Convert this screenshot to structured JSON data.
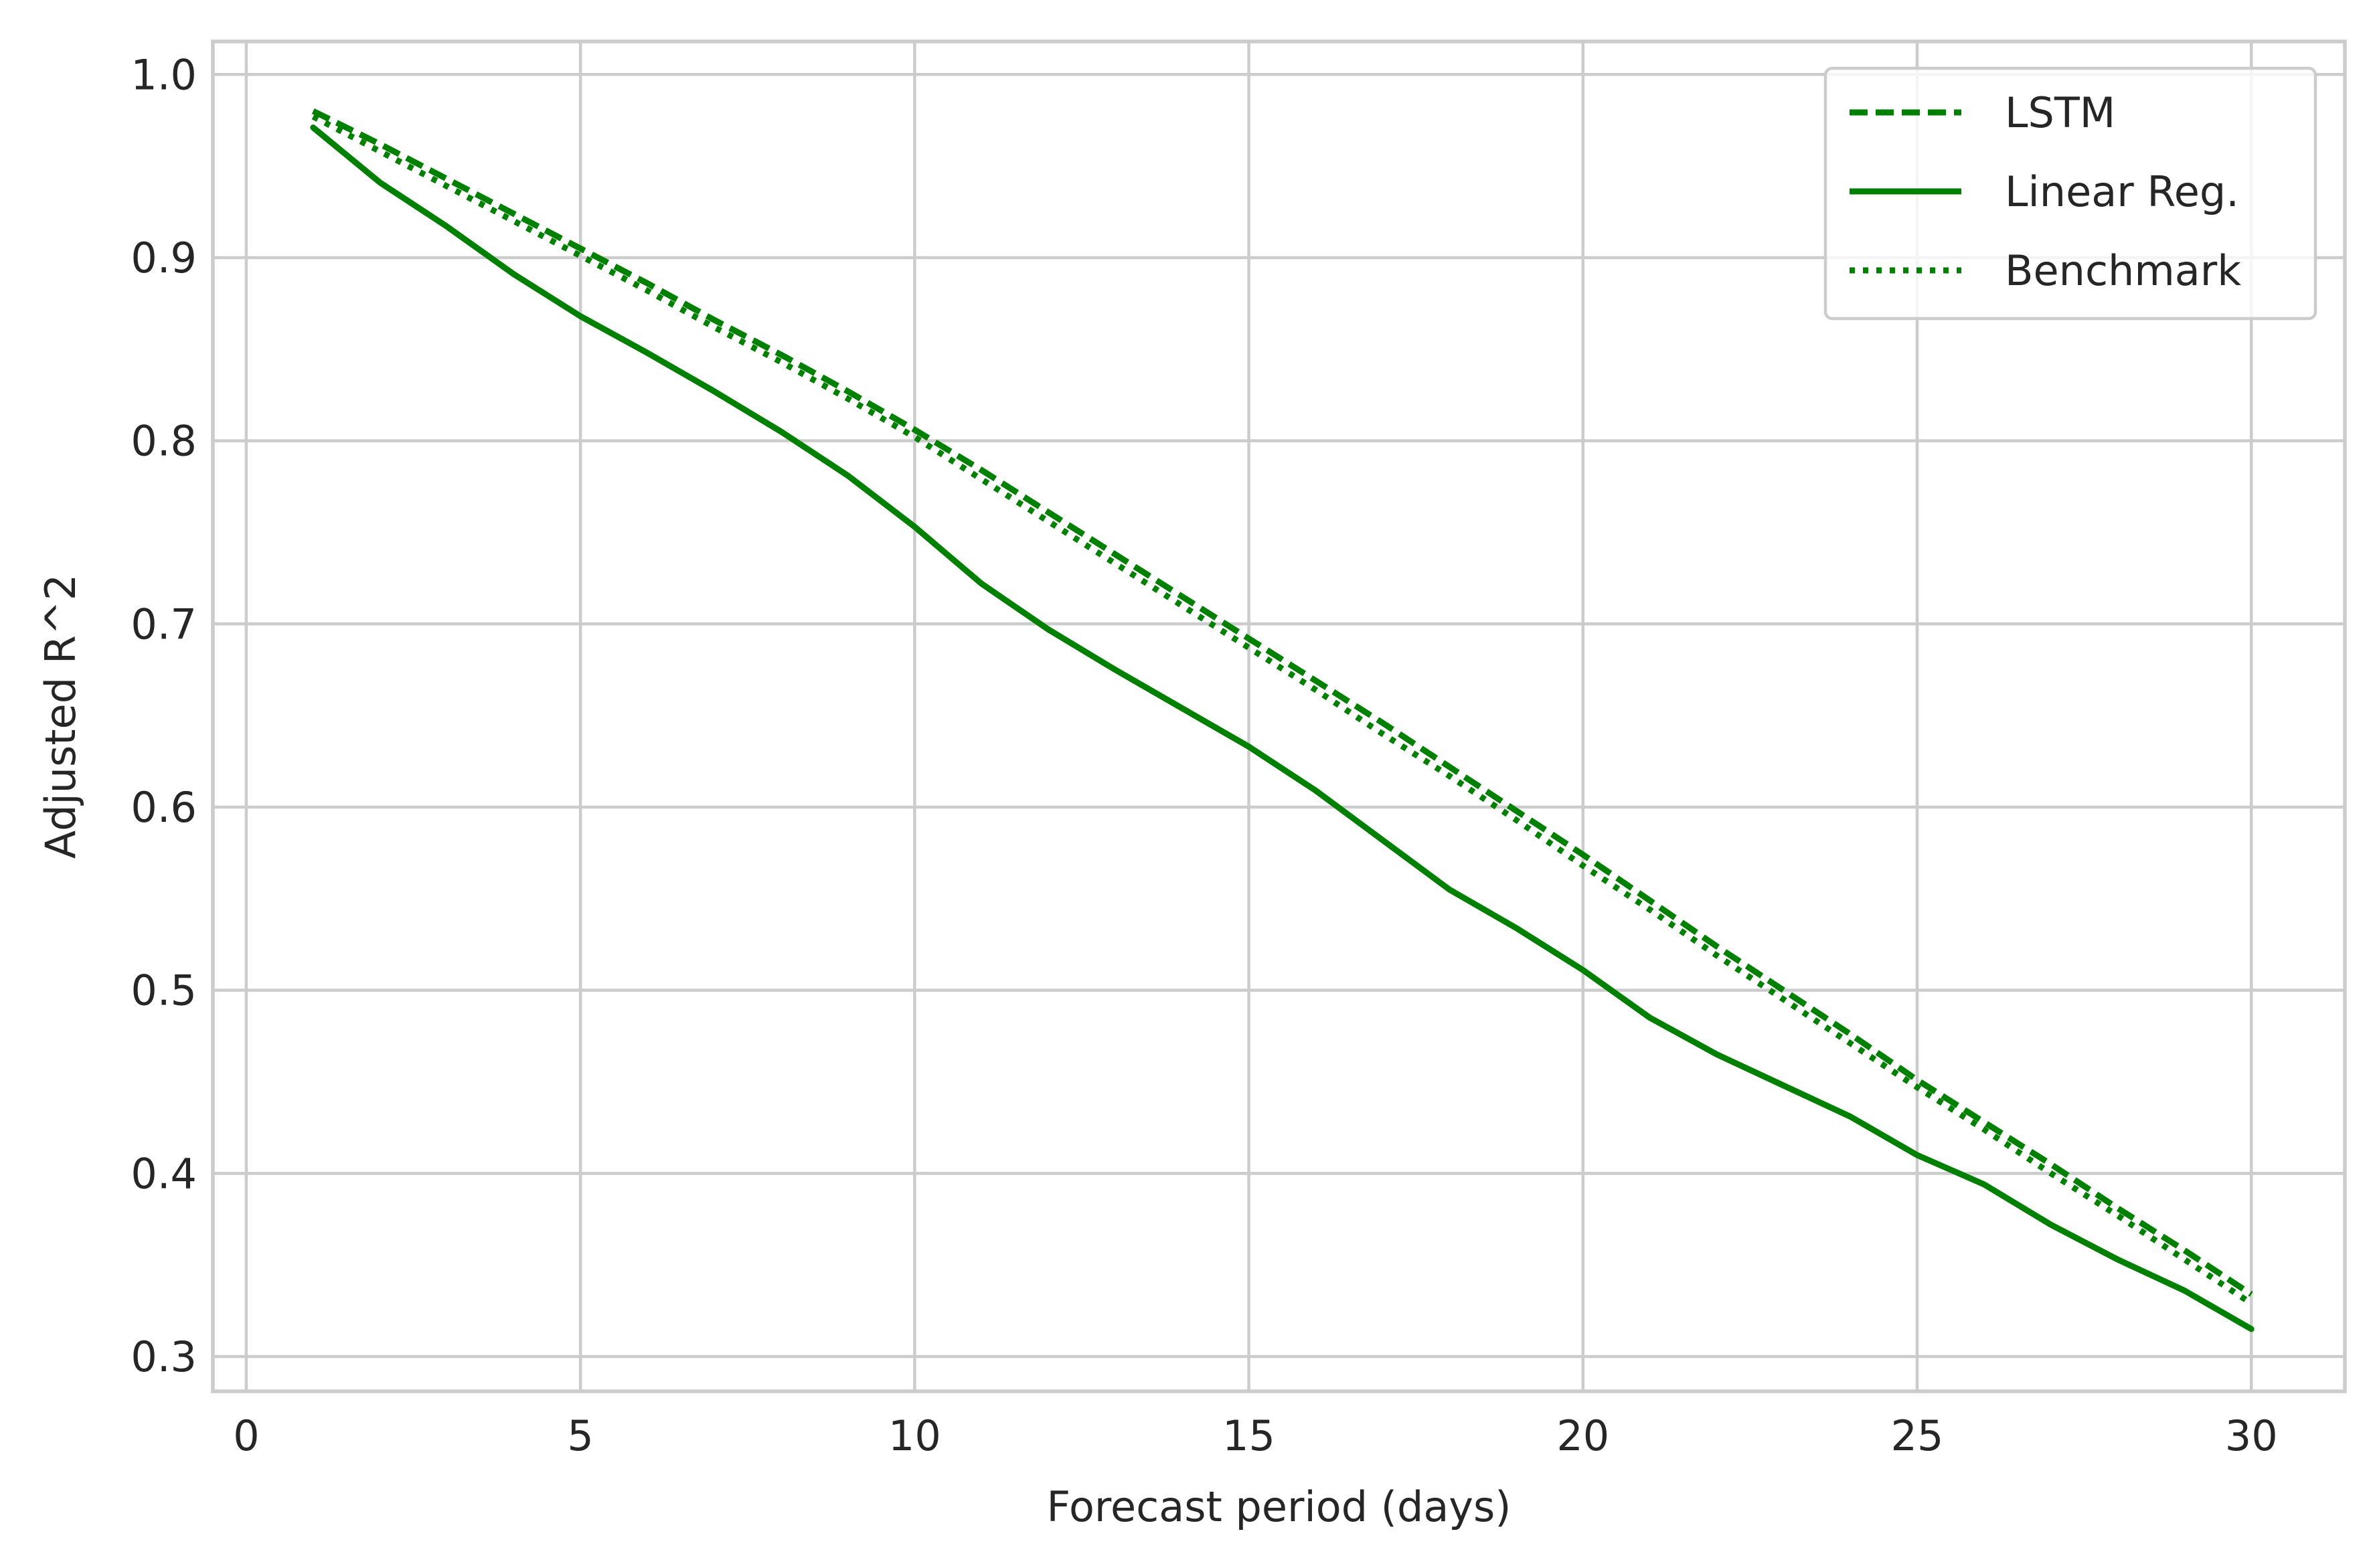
{
  "chart_data": {
    "type": "line",
    "xlabel": "Forecast period (days)",
    "ylabel": "Adjusted R^2",
    "xlim": [
      -0.5,
      31.4
    ],
    "ylim": [
      0.281,
      1.018
    ],
    "x_ticks": [
      0,
      5,
      10,
      15,
      20,
      25,
      30
    ],
    "x_tick_labels": [
      "0",
      "5",
      "10",
      "15",
      "20",
      "25",
      "30"
    ],
    "y_ticks": [
      0.3,
      0.4,
      0.5,
      0.6,
      0.7,
      0.8,
      0.9,
      1.0
    ],
    "y_tick_labels": [
      "0.3",
      "0.4",
      "0.5",
      "0.6",
      "0.7",
      "0.8",
      "0.9",
      "1.0"
    ],
    "grid": true,
    "legend_position": "top-right",
    "x": [
      1,
      2,
      3,
      4,
      5,
      6,
      7,
      8,
      9,
      10,
      11,
      12,
      13,
      14,
      15,
      16,
      17,
      18,
      19,
      20,
      21,
      22,
      23,
      24,
      25,
      26,
      27,
      28,
      29,
      30
    ],
    "series": [
      {
        "name": "LSTM",
        "style": "dashed",
        "color": "#008000",
        "values": [
          0.98,
          0.962,
          0.943,
          0.924,
          0.905,
          0.886,
          0.866,
          0.847,
          0.827,
          0.806,
          0.784,
          0.761,
          0.738,
          0.715,
          0.692,
          0.669,
          0.646,
          0.622,
          0.598,
          0.574,
          0.549,
          0.524,
          0.5,
          0.476,
          0.451,
          0.428,
          0.405,
          0.381,
          0.358,
          0.334
        ]
      },
      {
        "name": "Linear Reg.",
        "style": "solid",
        "color": "#008000",
        "values": [
          0.971,
          0.941,
          0.917,
          0.891,
          0.868,
          0.848,
          0.827,
          0.805,
          0.781,
          0.753,
          0.722,
          0.697,
          0.675,
          0.654,
          0.633,
          0.609,
          0.582,
          0.555,
          0.534,
          0.511,
          0.485,
          0.465,
          0.448,
          0.431,
          0.41,
          0.394,
          0.372,
          0.353,
          0.336,
          0.315
        ]
      },
      {
        "name": "Benchmark",
        "style": "dotted",
        "color": "#008000",
        "values": [
          0.977,
          0.958,
          0.939,
          0.92,
          0.901,
          0.882,
          0.862,
          0.843,
          0.823,
          0.802,
          0.779,
          0.756,
          0.733,
          0.71,
          0.687,
          0.664,
          0.64,
          0.617,
          0.593,
          0.568,
          0.544,
          0.519,
          0.495,
          0.471,
          0.447,
          0.424,
          0.4,
          0.377,
          0.353,
          0.329
        ]
      }
    ]
  }
}
